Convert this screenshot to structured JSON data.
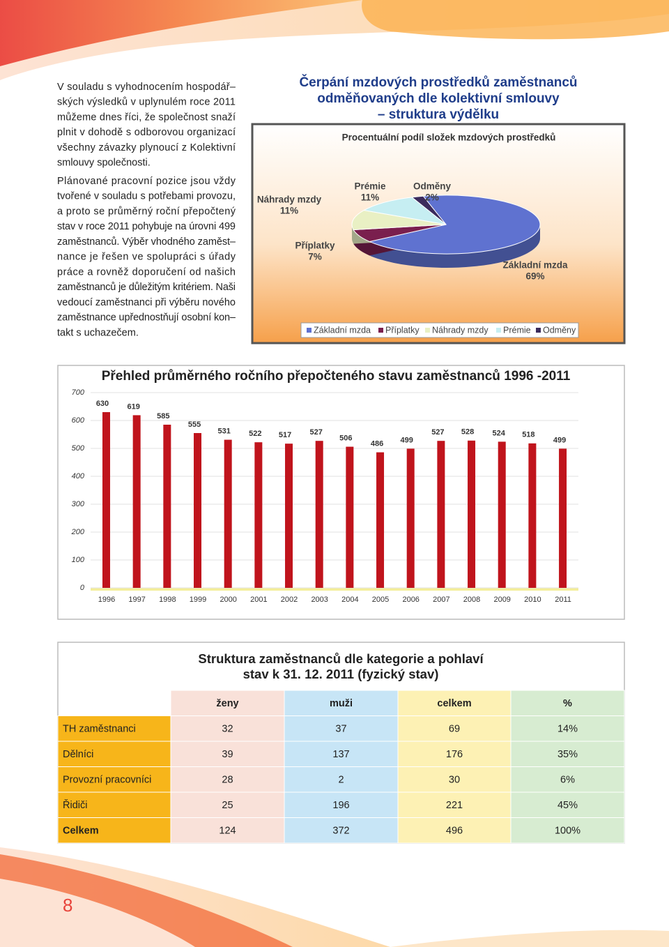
{
  "text": {
    "paragraphs": [
      [
        "V souladu s vyhodnocením hospodář–",
        "ských výsledků v uplynulém roce 2011",
        "můžeme dnes říci, že společnost snaží",
        "plnit v dohodě s odborovou organizací",
        "všechny závazky plynoucí z Kolektivní",
        "smlouvy společnosti."
      ],
      [
        "Plánované pracovní pozice jsou vždy",
        "tvořené v souladu s potřebami provozu,",
        "a proto se průměrný roční přepočtený",
        "stav v roce 2011 pohybuje na úrovni 499",
        "zaměstnanců. Výběr vhodného zaměst–",
        "nance je řešen ve spolupráci s úřady",
        "práce a rovněž doporučení od našich",
        "zaměstnanců je důležitým kritériem. Naši",
        "vedoucí zaměstnanci při výběru nového",
        "zaměstnance upřednostňují osobní kon–",
        "takt s uchazečem."
      ]
    ]
  },
  "chart_data": [
    {
      "type": "pie",
      "heading": [
        "Čerpání mzdových prostředků zaměstnanců",
        "odměňovaných dle kolektivní smlouvy",
        "– struktura výdělku"
      ],
      "title": "Procentuální podíl složek mzdových prostředků",
      "categories": [
        "Základní mzda",
        "Příplatky",
        "Náhrady mzdy",
        "Prémie",
        "Odměny"
      ],
      "values": [
        69,
        7,
        11,
        11,
        2
      ],
      "value_labels": [
        "69%",
        "7%",
        "11%",
        "11%",
        "2%"
      ],
      "colors": [
        "#5f72d0",
        "#7a1f4e",
        "#e9f0c4",
        "#c6eef2",
        "#3b2b5c"
      ],
      "legend": "bottom"
    },
    {
      "type": "bar",
      "title": "Přehled průměrného ročního přepočteného stavu zaměstnanců  1996 -2011",
      "categories": [
        "1996",
        "1997",
        "1998",
        "1999",
        "2000",
        "2001",
        "2002",
        "2003",
        "2004",
        "2005",
        "2006",
        "2007",
        "2008",
        "2009",
        "2010",
        "2011"
      ],
      "values": [
        630,
        619,
        585,
        555,
        531,
        522,
        517,
        527,
        506,
        486,
        499,
        527,
        528,
        524,
        518,
        499
      ],
      "color": "#c0141c",
      "ylim": [
        0,
        700
      ],
      "yticks": [
        0,
        100,
        200,
        300,
        400,
        500,
        600,
        700
      ],
      "grid": true
    }
  ],
  "table": {
    "title": [
      "Struktura zaměstnanců dle kategorie a pohlaví",
      "stav k 31. 12. 2011 (fyzický stav)"
    ],
    "header": [
      "ženy",
      "muži",
      "celkem",
      "%"
    ],
    "rows": [
      [
        "TH zaměstnanci",
        "32",
        "37",
        "69",
        "14%"
      ],
      [
        "Dělníci",
        "39",
        "137",
        "176",
        "35%"
      ],
      [
        "Provozní pracovníci",
        "28",
        "2",
        "30",
        "6%"
      ],
      [
        "Řidiči",
        "25",
        "196",
        "221",
        "45%"
      ],
      [
        "Celkem",
        "124",
        "372",
        "496",
        "100%"
      ]
    ]
  },
  "page_number": "8"
}
